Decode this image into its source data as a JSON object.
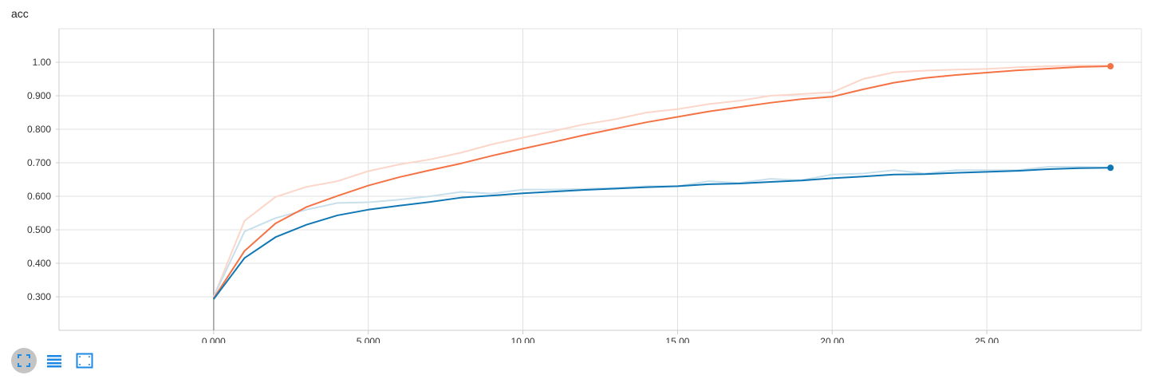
{
  "title": "acc",
  "colors": {
    "series_orange": "#f57245",
    "series_orange_raw": "#fbd6c9",
    "series_blue": "#0f77b4",
    "series_blue_raw": "#c8dfec",
    "grid": "#e0e0e0",
    "axis": "#999999",
    "icon": "#1e88e5"
  },
  "toolbar": {
    "buttons": [
      {
        "icon": "fullscreen-icon",
        "active": true
      },
      {
        "icon": "list-lines-icon",
        "active": false
      },
      {
        "icon": "fit-domain-icon",
        "active": false
      }
    ]
  },
  "chart_data": {
    "type": "line",
    "title": "acc",
    "xlabel": "",
    "ylabel": "",
    "xlim": [
      -5.0,
      30.0
    ],
    "ylim": [
      0.2,
      1.1
    ],
    "grid": true,
    "x_ticks": [
      0,
      5,
      10,
      15,
      20,
      25
    ],
    "x_tick_labels": [
      "0.000",
      "5.000",
      "10.00",
      "15.00",
      "20.00",
      "25.00"
    ],
    "y_ticks": [
      0.3,
      0.4,
      0.5,
      0.6,
      0.7,
      0.8,
      0.9,
      1.0
    ],
    "y_tick_labels": [
      "0.300",
      "0.400",
      "0.500",
      "0.600",
      "0.700",
      "0.800",
      "0.900",
      "1.00"
    ],
    "x": [
      0,
      1,
      2,
      3,
      4,
      5,
      6,
      7,
      8,
      9,
      10,
      11,
      12,
      13,
      14,
      15,
      16,
      17,
      18,
      19,
      20,
      21,
      22,
      23,
      24,
      25,
      26,
      27,
      28,
      29
    ],
    "series": [
      {
        "color": "#f57245",
        "raw_color": "#fbd6c9",
        "smoothed": [
          0.295,
          0.437,
          0.519,
          0.568,
          0.601,
          0.632,
          0.657,
          0.678,
          0.698,
          0.721,
          0.742,
          0.762,
          0.783,
          0.802,
          0.821,
          0.837,
          0.853,
          0.866,
          0.879,
          0.89,
          0.897,
          0.919,
          0.939,
          0.953,
          0.962,
          0.969,
          0.976,
          0.981,
          0.986,
          0.988
        ],
        "raw": [
          0.3,
          0.527,
          0.598,
          0.628,
          0.645,
          0.675,
          0.695,
          0.71,
          0.73,
          0.755,
          0.775,
          0.795,
          0.815,
          0.83,
          0.85,
          0.86,
          0.875,
          0.885,
          0.9,
          0.905,
          0.91,
          0.95,
          0.97,
          0.975,
          0.978,
          0.98,
          0.985,
          0.988,
          0.99,
          0.99
        ]
      },
      {
        "color": "#0f77b4",
        "raw_color": "#c8dfec",
        "smoothed": [
          0.293,
          0.416,
          0.478,
          0.515,
          0.543,
          0.56,
          0.572,
          0.583,
          0.596,
          0.602,
          0.609,
          0.614,
          0.619,
          0.623,
          0.627,
          0.63,
          0.636,
          0.638,
          0.643,
          0.647,
          0.654,
          0.659,
          0.665,
          0.666,
          0.67,
          0.673,
          0.676,
          0.681,
          0.684,
          0.685
        ],
        "raw": [
          0.3,
          0.495,
          0.535,
          0.56,
          0.58,
          0.582,
          0.59,
          0.6,
          0.613,
          0.608,
          0.62,
          0.62,
          0.622,
          0.625,
          0.63,
          0.63,
          0.645,
          0.64,
          0.652,
          0.648,
          0.665,
          0.668,
          0.678,
          0.668,
          0.678,
          0.678,
          0.678,
          0.688,
          0.688,
          0.685
        ]
      }
    ]
  }
}
